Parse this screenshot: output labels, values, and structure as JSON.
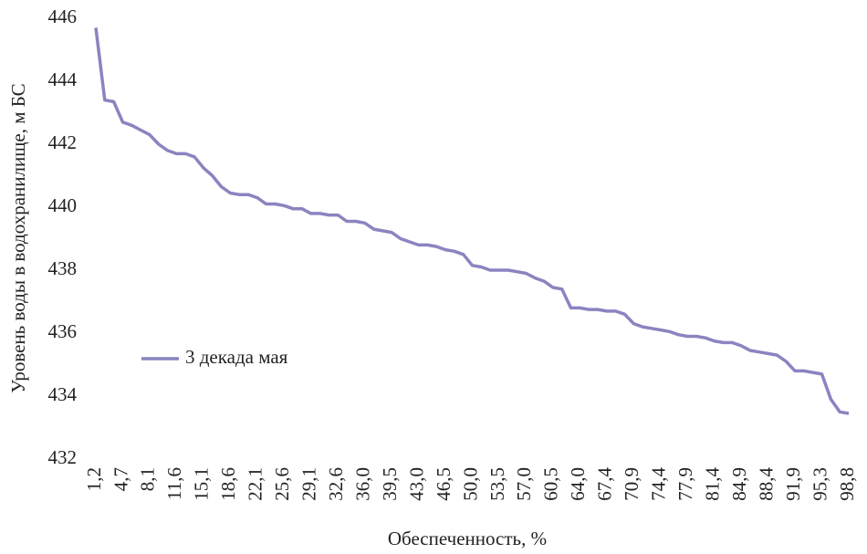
{
  "chart_data": {
    "type": "line",
    "y_label": "Уровень воды в водохранилище, м БС",
    "x_label": "Обеспеченность, %",
    "categories": [
      "1,2",
      null,
      null,
      "4,7",
      null,
      null,
      "8,1",
      null,
      null,
      "11,6",
      null,
      null,
      "15,1",
      null,
      null,
      "18,6",
      null,
      null,
      "22,1",
      null,
      null,
      "25,6",
      null,
      null,
      "29,1",
      null,
      null,
      "32,6",
      null,
      null,
      "36,0",
      null,
      null,
      "39,5",
      null,
      null,
      "43,0",
      null,
      null,
      "46,5",
      null,
      null,
      "50,0",
      null,
      null,
      "53,5",
      null,
      null,
      "57,0",
      null,
      null,
      "60,5",
      null,
      null,
      "64,0",
      null,
      null,
      "67,4",
      null,
      null,
      "70,9",
      null,
      null,
      "74,4",
      null,
      null,
      "77,9",
      null,
      null,
      "81,4",
      null,
      null,
      "84,9",
      null,
      null,
      "88,4",
      null,
      null,
      "91,9",
      null,
      null,
      "95,3",
      null,
      null,
      "98,8"
    ],
    "series": [
      {
        "name": "3 декада мая",
        "color": "#8a84c0",
        "values": [
          445.7,
          443.4,
          443.35,
          442.7,
          442.6,
          442.45,
          442.3,
          442.0,
          441.8,
          441.7,
          441.7,
          441.6,
          441.25,
          441.0,
          440.65,
          440.45,
          440.4,
          440.4,
          440.3,
          440.1,
          440.1,
          440.05,
          439.95,
          439.95,
          439.8,
          439.8,
          439.75,
          439.75,
          439.55,
          439.55,
          439.5,
          439.3,
          439.25,
          439.2,
          439.0,
          438.9,
          438.8,
          438.8,
          438.75,
          438.65,
          438.6,
          438.5,
          438.15,
          438.1,
          438.0,
          438.0,
          438.0,
          437.95,
          437.9,
          437.75,
          437.65,
          437.45,
          437.4,
          436.8,
          436.8,
          436.75,
          436.75,
          436.7,
          436.7,
          436.6,
          436.3,
          436.2,
          436.15,
          436.1,
          436.05,
          435.95,
          435.9,
          435.9,
          435.85,
          435.75,
          435.7,
          435.7,
          435.6,
          435.45,
          435.4,
          435.35,
          435.3,
          435.1,
          434.8,
          434.8,
          434.75,
          434.7,
          433.9,
          433.5,
          433.45
        ]
      }
    ],
    "ylim": [
      432,
      446
    ],
    "yticks": [
      432,
      434,
      436,
      438,
      440,
      442,
      444,
      446
    ],
    "grid": false,
    "legend": "left"
  }
}
